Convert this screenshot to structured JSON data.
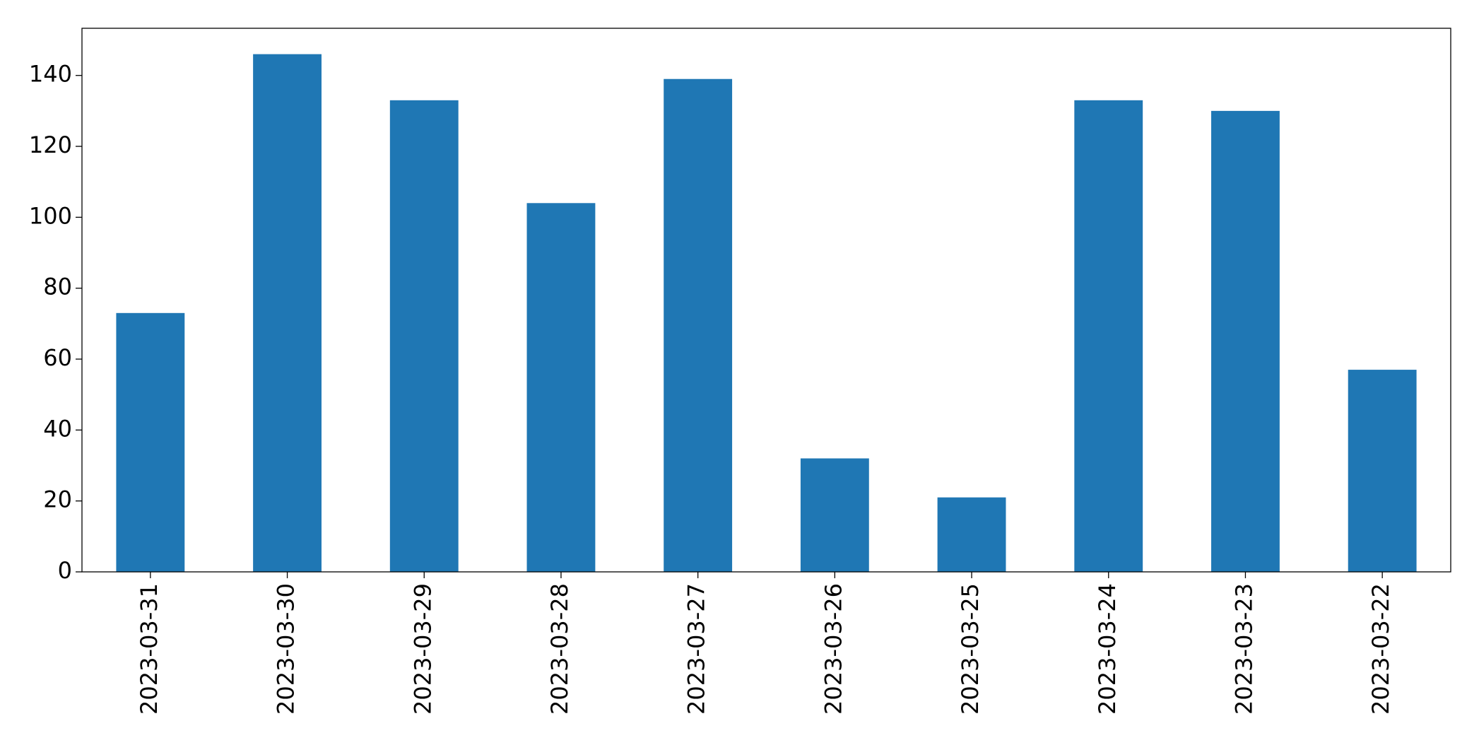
{
  "chart_data": {
    "type": "bar",
    "categories": [
      "2023-03-31",
      "2023-03-30",
      "2023-03-29",
      "2023-03-28",
      "2023-03-27",
      "2023-03-26",
      "2023-03-25",
      "2023-03-24",
      "2023-03-23",
      "2023-03-22"
    ],
    "values": [
      73,
      146,
      133,
      104,
      139,
      32,
      21,
      133,
      130,
      57
    ],
    "color": "#1f77b4",
    "ylim": [
      0,
      153.3
    ],
    "yticks": [
      0,
      20,
      40,
      60,
      80,
      100,
      120,
      140
    ],
    "grid": false
  }
}
